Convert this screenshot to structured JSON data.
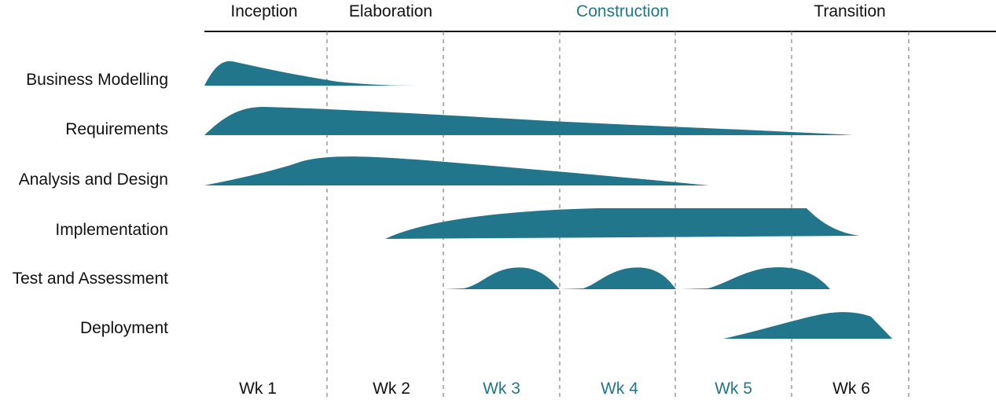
{
  "colors": {
    "shape": "#21768c",
    "accent_text": "#21768c",
    "text": "#111111",
    "divider": "#8a8a8a",
    "top_rule": "#111111"
  },
  "phases": [
    {
      "label": "Inception",
      "accent": false
    },
    {
      "label": "Elaboration",
      "accent": false
    },
    {
      "label": "Construction",
      "accent": true
    },
    {
      "label": "Transition",
      "accent": false
    }
  ],
  "weeks": [
    {
      "label": "Wk 1",
      "accent": false
    },
    {
      "label": "Wk 2",
      "accent": false
    },
    {
      "label": "Wk 3",
      "accent": true
    },
    {
      "label": "Wk 4",
      "accent": true
    },
    {
      "label": "Wk 5",
      "accent": true
    },
    {
      "label": "Wk 6",
      "accent": false
    }
  ],
  "disciplines": [
    {
      "label": "Business Modelling"
    },
    {
      "label": "Requirements"
    },
    {
      "label": "Analysis and Design"
    },
    {
      "label": "Implementation"
    },
    {
      "label": "Test and Assessment"
    },
    {
      "label": "Deployment"
    }
  ]
}
